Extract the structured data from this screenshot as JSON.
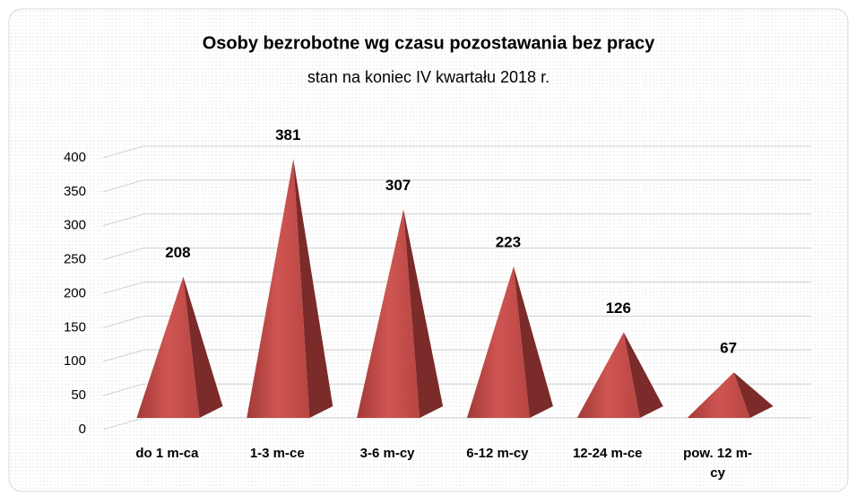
{
  "chart_data": {
    "type": "pyramid",
    "title": "Osoby bezrobotne wg czasu pozostawania bez pracy",
    "subtitle": "stan na koniec IV kwartału 2018 r.",
    "categories": [
      "do 1 m-ca",
      "1-3 m-ce",
      "3-6 m-cy",
      "6-12 m-cy",
      "12-24 m-ce",
      "pow. 12 m-cy"
    ],
    "values": [
      208,
      381,
      307,
      223,
      126,
      67
    ],
    "color": "#c0504d",
    "ylim": [
      0,
      400
    ],
    "yticks": [
      0,
      50,
      100,
      150,
      200,
      250,
      300,
      350,
      400
    ],
    "grid": true
  }
}
